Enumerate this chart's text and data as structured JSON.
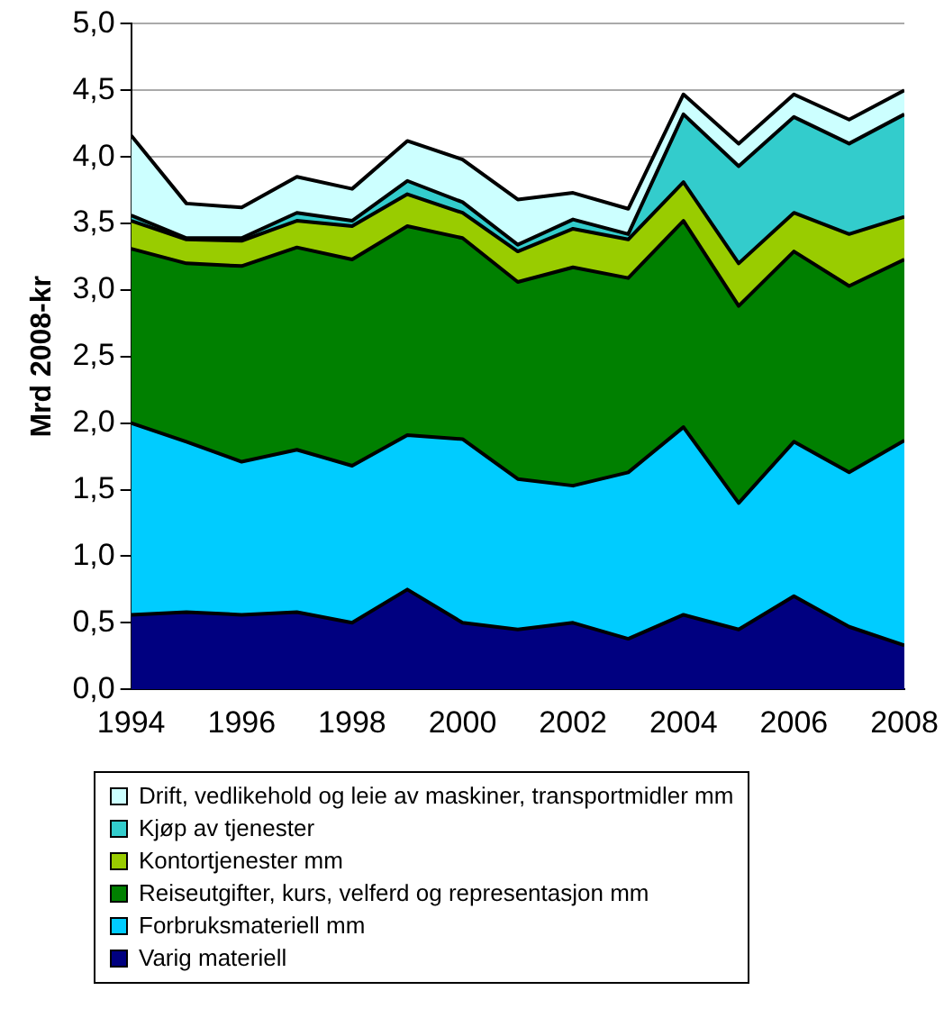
{
  "chart_data": {
    "type": "area",
    "stacked": true,
    "ylabel": "Mrd 2008-kr",
    "x": [
      1994,
      1995,
      1996,
      1997,
      1998,
      1999,
      2000,
      2001,
      2002,
      2003,
      2004,
      2005,
      2006,
      2007,
      2008
    ],
    "xlim": [
      1994,
      2008
    ],
    "xticks": [
      1994,
      1996,
      1998,
      2000,
      2002,
      2004,
      2006,
      2008
    ],
    "ylim": [
      0,
      5
    ],
    "yticks": [
      {
        "value": 0,
        "label": "0,0"
      },
      {
        "value": 0.5,
        "label": "0,5"
      },
      {
        "value": 1,
        "label": "1,0"
      },
      {
        "value": 1.5,
        "label": "1,5"
      },
      {
        "value": 2,
        "label": "2,0"
      },
      {
        "value": 2.5,
        "label": "2,5"
      },
      {
        "value": 3,
        "label": "3,0"
      },
      {
        "value": 3.5,
        "label": "3,5"
      },
      {
        "value": 4,
        "label": "4,0"
      },
      {
        "value": 4.5,
        "label": "4,5"
      },
      {
        "value": 5,
        "label": "5,0"
      }
    ],
    "grid": "y",
    "legend": "bottom",
    "series": [
      {
        "name": "Varig materiell",
        "color": "#000080",
        "values": [
          0.56,
          0.58,
          0.56,
          0.58,
          0.5,
          0.75,
          0.5,
          0.45,
          0.5,
          0.38,
          0.56,
          0.45,
          0.7,
          0.47,
          0.33
        ]
      },
      {
        "name": "Forbruksmateriell mm",
        "color": "#00ccff",
        "values": [
          1.44,
          1.28,
          1.15,
          1.22,
          1.18,
          1.16,
          1.38,
          1.13,
          1.03,
          1.25,
          1.41,
          0.95,
          1.16,
          1.16,
          1.54
        ]
      },
      {
        "name": "Reiseutgifter, kurs, velferd og representasjon mm",
        "color": "#008000",
        "values": [
          1.31,
          1.34,
          1.47,
          1.52,
          1.55,
          1.57,
          1.51,
          1.48,
          1.64,
          1.46,
          1.55,
          1.48,
          1.43,
          1.4,
          1.36
        ]
      },
      {
        "name": "Kontortjenester mm",
        "color": "#99cc00",
        "values": [
          0.21,
          0.18,
          0.19,
          0.2,
          0.25,
          0.24,
          0.19,
          0.23,
          0.29,
          0.29,
          0.29,
          0.32,
          0.29,
          0.39,
          0.32
        ]
      },
      {
        "name": "Kjøp av tjenester",
        "color": "#33cccc",
        "values": [
          0.04,
          0.01,
          0.02,
          0.06,
          0.04,
          0.1,
          0.08,
          0.05,
          0.07,
          0.04,
          0.51,
          0.73,
          0.72,
          0.68,
          0.77
        ]
      },
      {
        "name": "Drift, vedlikehold og leie av maskiner, transportmidler mm",
        "color": "#ccffff",
        "values": [
          0.6,
          0.26,
          0.23,
          0.27,
          0.24,
          0.3,
          0.32,
          0.34,
          0.2,
          0.19,
          0.15,
          0.17,
          0.17,
          0.18,
          0.18
        ]
      }
    ]
  }
}
